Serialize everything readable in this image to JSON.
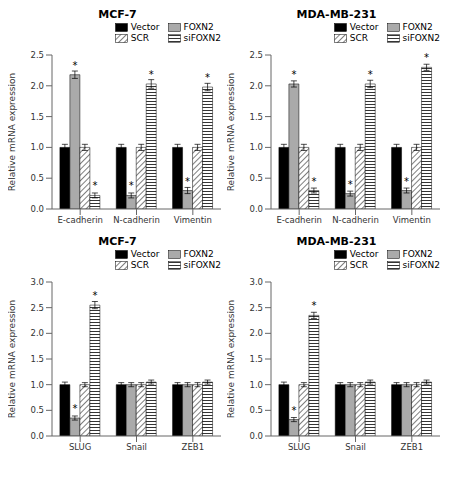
{
  "chart_data": [
    {
      "type": "bar",
      "title": "MCF-7",
      "categories": [
        "E-cadherin",
        "N-cadherin",
        "Vimentin"
      ],
      "series": [
        {
          "name": "Vector",
          "color": "black",
          "values": [
            1.0,
            1.0,
            1.0
          ],
          "errors": [
            0.05,
            0.05,
            0.05
          ]
        },
        {
          "name": "FOXN2",
          "color": "#aaaaaa",
          "values": [
            2.18,
            0.22,
            0.3
          ],
          "errors": [
            0.06,
            0.04,
            0.05
          ],
          "annotations": [
            "*",
            "*",
            "*"
          ]
        },
        {
          "name": "SCR",
          "color": "white",
          "values": [
            1.0,
            1.0,
            1.0
          ],
          "errors": [
            0.05,
            0.05,
            0.05
          ]
        },
        {
          "name": "siFOXN2",
          "color": "white",
          "values": [
            0.22,
            2.03,
            1.98
          ],
          "errors": [
            0.04,
            0.07,
            0.06
          ],
          "annotations": [
            "*",
            "*",
            "*"
          ]
        }
      ],
      "ylim": [
        0,
        2.5
      ],
      "yticks": [
        {
          "value": 0,
          "label": "0.0"
        },
        0.5,
        {
          "value": 1.0,
          "label": "1.0"
        },
        1.5,
        {
          "value": 2.0,
          "label": "2.0"
        },
        2.5
      ],
      "ylabel": "Relative mRNA expression",
      "legend": "upper right"
    },
    {
      "type": "bar",
      "title": "MDA-MB-231",
      "categories": [
        "E-cadherin",
        "N-cadherin",
        "Vimentin"
      ],
      "series": [
        {
          "name": "Vector",
          "color": "black",
          "values": [
            1.0,
            1.0,
            1.0
          ],
          "errors": [
            0.05,
            0.05,
            0.05
          ]
        },
        {
          "name": "FOXN2",
          "color": "#aaaaaa",
          "values": [
            2.03,
            0.25,
            0.3
          ],
          "errors": [
            0.05,
            0.04,
            0.04
          ],
          "annotations": [
            "*",
            "*",
            "*"
          ]
        },
        {
          "name": "SCR",
          "color": "white",
          "values": [
            1.0,
            1.0,
            1.0
          ],
          "errors": [
            0.05,
            0.05,
            0.05
          ]
        },
        {
          "name": "siFOXN2",
          "color": "white",
          "values": [
            0.3,
            2.03,
            2.3
          ],
          "errors": [
            0.04,
            0.06,
            0.05
          ],
          "annotations": [
            "*",
            "*",
            "*"
          ]
        }
      ],
      "ylim": [
        0,
        2.5
      ],
      "yticks": [
        {
          "value": 0,
          "label": "0.0"
        },
        0.5,
        {
          "value": 1.0,
          "label": "1.0"
        },
        1.5,
        {
          "value": 2.0,
          "label": "2.0"
        },
        2.5
      ],
      "ylabel": "Relative mRNA expression",
      "legend": "upper right"
    },
    {
      "type": "bar",
      "title": "MCF-7",
      "categories": [
        "SLUG",
        "Snail",
        "ZEB1"
      ],
      "series": [
        {
          "name": "Vector",
          "color": "black",
          "values": [
            1.0,
            1.0,
            1.0
          ],
          "errors": [
            0.05,
            0.04,
            0.04
          ]
        },
        {
          "name": "FOXN2",
          "color": "#aaaaaa",
          "values": [
            0.35,
            1.0,
            1.0
          ],
          "errors": [
            0.04,
            0.04,
            0.04
          ],
          "annotations": [
            "*",
            null,
            null
          ]
        },
        {
          "name": "SCR",
          "color": "white",
          "values": [
            1.0,
            1.0,
            1.0
          ],
          "errors": [
            0.04,
            0.04,
            0.04
          ]
        },
        {
          "name": "siFOXN2",
          "color": "white",
          "values": [
            2.55,
            1.05,
            1.05
          ],
          "errors": [
            0.07,
            0.04,
            0.04
          ],
          "annotations": [
            "*",
            null,
            null
          ]
        }
      ],
      "ylim": [
        0,
        3.0
      ],
      "yticks": [
        {
          "value": 0,
          "label": "0.0"
        },
        0.5,
        {
          "value": 1.0,
          "label": "1.0"
        },
        1.5,
        {
          "value": 2.0,
          "label": "2.0"
        },
        2.5,
        {
          "value": 3.0,
          "label": "3.0"
        }
      ],
      "ylabel": "Relative mRNA expression",
      "legend": "upper right"
    },
    {
      "type": "bar",
      "title": "MDA-MB-231",
      "categories": [
        "SLUG",
        "Snail",
        "ZEB1"
      ],
      "series": [
        {
          "name": "Vector",
          "color": "black",
          "values": [
            1.0,
            1.0,
            1.0
          ],
          "errors": [
            0.05,
            0.04,
            0.04
          ]
        },
        {
          "name": "FOXN2",
          "color": "#aaaaaa",
          "values": [
            0.32,
            1.0,
            1.0
          ],
          "errors": [
            0.04,
            0.04,
            0.04
          ],
          "annotations": [
            "*",
            null,
            null
          ]
        },
        {
          "name": "SCR",
          "color": "white",
          "values": [
            1.0,
            1.0,
            1.0
          ],
          "errors": [
            0.04,
            0.04,
            0.04
          ]
        },
        {
          "name": "siFOXN2",
          "color": "white",
          "values": [
            2.35,
            1.05,
            1.05
          ],
          "errors": [
            0.06,
            0.04,
            0.04
          ],
          "annotations": [
            "*",
            null,
            null
          ]
        }
      ],
      "ylim": [
        0,
        3.0
      ],
      "yticks": [
        {
          "value": 0,
          "label": "0.0"
        },
        0.5,
        {
          "value": 1.0,
          "label": "1.0"
        },
        1.5,
        {
          "value": 2.0,
          "label": "2.0"
        },
        2.5,
        {
          "value": 3.0,
          "label": "3.0"
        }
      ],
      "ylabel": "Relative mRNA expression",
      "legend": "upper right"
    }
  ]
}
